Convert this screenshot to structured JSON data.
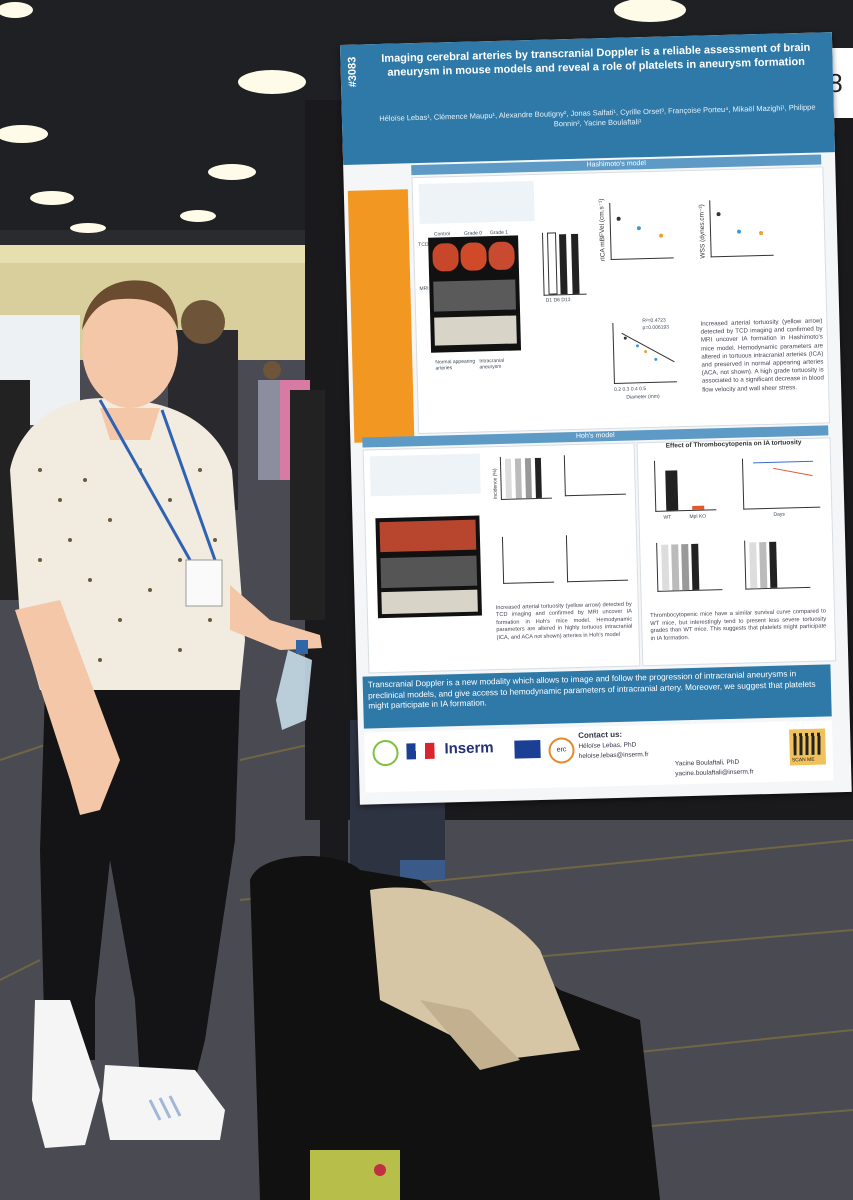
{
  "poster": {
    "number": "#3083",
    "title": "Imaging cerebral arteries by transcranial Doppler is a reliable assessment of brain aneurysm in mouse models and reveal a role of platelets in aneurysm formation",
    "authors": "Héloïse Lebas¹, Clémence Maupu¹, Alexandre Boutigny², Jonas Salfati¹, Cyrille Orset³, Françoise Porteu⁴, Mikaël Mazighi¹, Philippe Bonnin², Yacine Boulaftali¹",
    "hashimoto_header": "Hashimoto's model",
    "hoh_header": "Hoh's model",
    "thrombo_header": "Effect of Thrombocytopenia on IA tortuosity",
    "hashimoto_text": "Increased arterial tortuosity (yellow arrow) detected by TCD imaging and confirmed by MRI uncover IA formation in Hashimoto's mice model. Hemodynamic parameters are altered in tortuous intracranial arteries (ICA) and preserved in normal appearing arteries (ACA, not shown). A high grade tortuosity is associated to a significant decrease in blood flow velocity and wall sheer stress.",
    "hoh_text": "Increased arterial tortuosity (yellow arrow) detected by TCD imaging and confirmed by MRI uncover IA formation in Hoh's mice model. Hemodynamic parameters are altered in highly tortuous intracranial (ICA, and ACA not shown) arteries in Hoh's model",
    "thrombo_text": "Thrombocytopenic mice have a similar survival curve compared to WT mice, but interestingly tend to present less severe tortuosity grades than WT mice. This suggests that platelets might participate in IA formation.",
    "conclusion": "Transcranial Doppler is a new modality which allows to image and follow the progression of intracranial aneurysms in preclinical models, and give access to hemodynamic parameters of intracranial artery. Moreover, we suggest that platelets might participate in IA formation.",
    "contact_label": "Contact us:",
    "contact_1_name": "Héloïse Lebas, PhD",
    "contact_1_email": "heloise.lebas@inserm.fr",
    "contact_2_name": "Yacine Boulaftali, PhD",
    "contact_2_email": "yacine.boulaftali@inserm.fr",
    "logo_inserm": "Inserm",
    "logo_erc": "erc",
    "qr_label": "SCAN ME",
    "labels": {
      "control": "Control",
      "grade0": "Grade 0",
      "grade1": "Grade 1",
      "grade2": "Grade 2",
      "grade3": "Grade 3",
      "normal": "Normal appearing arteries",
      "intracranial": "Intracranial aneurysm",
      "ricA": "rICA mBFVel (cm.s⁻¹)",
      "wss": "WSS (dynes.cm⁻²)",
      "diameter": "Diameter (mm)",
      "r2": "R²=0.4723",
      "p": "p=0.006193",
      "incidence": "Incidence (%)",
      "platelet": "Platelet count (10⁹/μL)",
      "survival": "Percent survival",
      "days": "Days",
      "wt": "WT",
      "mplko": "Mpl KO",
      "tcd": "TCD",
      "mri": "MRI",
      "ticks_d": "D1 D6 D13",
      "x_ticks": "0.2  0.3  0.4  0.5"
    }
  },
  "board_number": "8",
  "colors": {
    "poster_blue": "#2e79a8",
    "intro_orange": "#f29722",
    "section_blue": "#5d9bc6"
  }
}
